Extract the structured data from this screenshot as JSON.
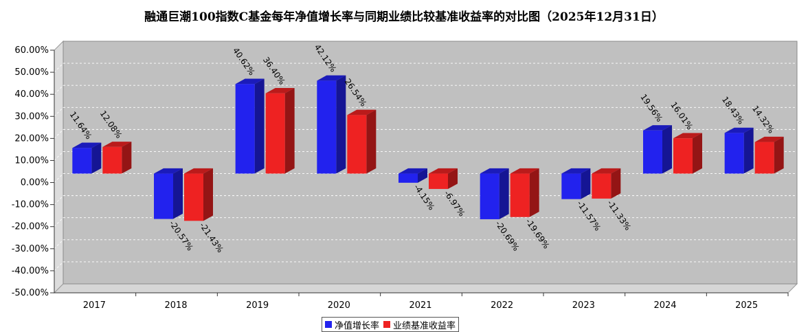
{
  "chart_data": {
    "type": "bar",
    "title": "融通巨潮100指数C基金每年净值增长率与同期业绩比较基准收益率的对比图（2025年12月31日）",
    "categories": [
      "2017",
      "2018",
      "2019",
      "2020",
      "2021",
      "2022",
      "2023",
      "2024",
      "2025"
    ],
    "series": [
      {
        "name": "净值增长率",
        "color": "#2222ee",
        "values": [
          11.64,
          -20.57,
          40.62,
          42.12,
          -4.15,
          -20.69,
          -11.57,
          19.56,
          18.43
        ],
        "labels": [
          "11.64%",
          "-20.57%",
          "40.62%",
          "42.12%",
          "-4.15%",
          "-20.69%",
          "-11.57%",
          "19.56%",
          "18.43%"
        ]
      },
      {
        "name": "业绩基准收益率",
        "color": "#ee2222",
        "values": [
          12.08,
          -21.43,
          36.4,
          26.54,
          -6.97,
          -19.69,
          -11.33,
          16.01,
          14.32
        ],
        "labels": [
          "12.08%",
          "-21.43%",
          "36.40%",
          "26.54%",
          "-6.97%",
          "-19.69%",
          "-11.33%",
          "16.01%",
          "14.32%"
        ]
      }
    ],
    "yticks": [
      "60.00%",
      "50.00%",
      "40.00%",
      "30.00%",
      "20.00%",
      "10.00%",
      "0.00%",
      "-10.00%",
      "-20.00%",
      "-30.00%",
      "-40.00%",
      "-50.00%"
    ],
    "ylim": [
      -50,
      60
    ],
    "grid": true,
    "legend_position": "bottom"
  }
}
